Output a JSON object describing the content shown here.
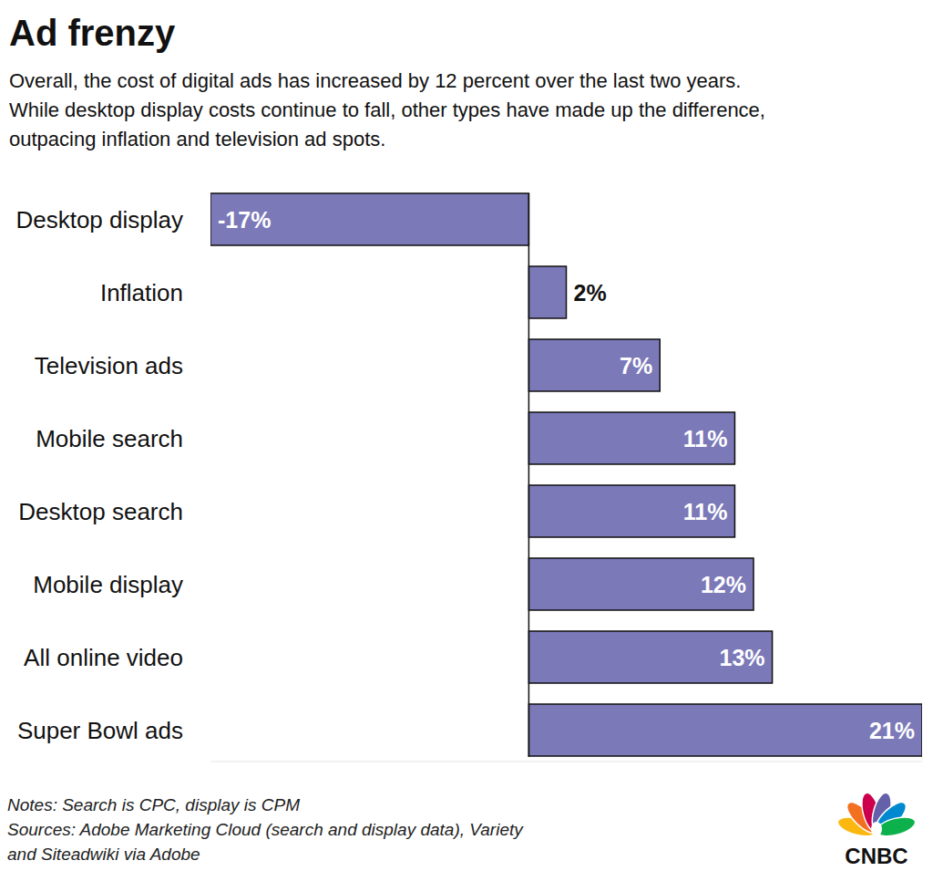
{
  "chart_data": {
    "type": "bar",
    "orientation": "horizontal",
    "title": "Ad frenzy",
    "subtitle": [
      "Overall, the cost of digital ads has increased by 12 percent over the last two years.",
      "While desktop display costs continue to fall, other types have made up the difference,",
      "outpacing inflation and television ad spots."
    ],
    "categories": [
      "Desktop display",
      "Inflation",
      "Television ads",
      "Mobile search",
      "Desktop search",
      "Mobile display",
      "All online video",
      "Super Bowl ads"
    ],
    "values": [
      -17,
      2,
      7,
      11,
      11,
      12,
      13,
      21
    ],
    "value_labels": [
      "-17%",
      "2%",
      "7%",
      "11%",
      "11%",
      "12%",
      "13%",
      "21%"
    ],
    "color": "#7b79b8",
    "xlim": [
      -17,
      21
    ],
    "xticks": [],
    "tick_labels": "y",
    "grid": false,
    "data_labels": true,
    "notes": [
      "Notes: Search is CPC, display is CPM",
      "Sources: Adobe Marketing Cloud (search and display data), Variety",
      "and Siteadwiki via Adobe"
    ],
    "logo_text": "CNBC"
  }
}
